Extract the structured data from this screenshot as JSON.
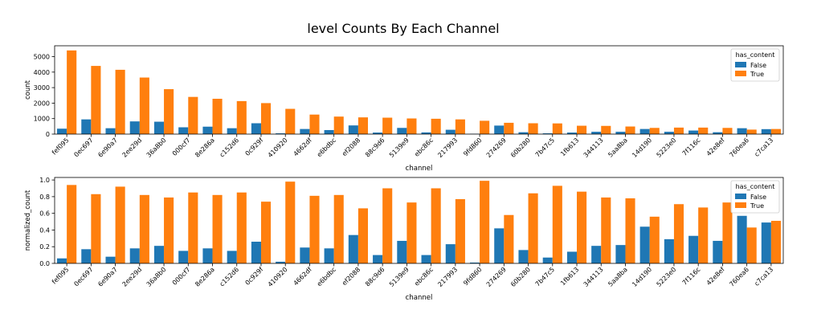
{
  "title": "level Counts By Each Channel",
  "colors": {
    "false_color": "#1f77b4",
    "true_color": "#ff7f0e"
  },
  "chart_data": [
    {
      "type": "bar",
      "xlabel": "channel",
      "ylabel": "count",
      "ylim": [
        0,
        5700
      ],
      "yticks": [
        0,
        1000,
        2000,
        3000,
        4000,
        5000
      ],
      "legend_title": "has_content",
      "legend_placement": "top-right",
      "grid": false,
      "categories": [
        "fef095",
        "0ec697",
        "6e90a7",
        "2ee29d",
        "36a8b0",
        "000cf7",
        "8e286a",
        "c152d6",
        "0c929f",
        "410920",
        "4662df",
        "e6bdbc",
        "ef2088",
        "88c9d6",
        "5139e9",
        "ebc86c",
        "217993",
        "9fd860",
        "274269",
        "60b280",
        "7b47c5",
        "1fb613",
        "344113",
        "5aa8ba",
        "14d190",
        "5223e0",
        "7f116c",
        "42e8ef",
        "760ea6",
        "c7ca13"
      ],
      "series": [
        {
          "name": "False",
          "values": [
            350,
            950,
            380,
            820,
            800,
            440,
            480,
            380,
            700,
            50,
            330,
            260,
            560,
            100,
            400,
            110,
            280,
            20,
            550,
            120,
            50,
            100,
            150,
            150,
            330,
            150,
            230,
            120,
            380,
            320
          ]
        },
        {
          "name": "True",
          "values": [
            5400,
            4400,
            4150,
            3650,
            2900,
            2400,
            2280,
            2130,
            2000,
            1630,
            1260,
            1130,
            1080,
            1060,
            1010,
            990,
            950,
            860,
            730,
            700,
            690,
            540,
            530,
            490,
            400,
            420,
            420,
            400,
            290,
            330
          ]
        }
      ]
    },
    {
      "type": "bar",
      "xlabel": "channel",
      "ylabel": "normalized_count",
      "ylim": [
        0,
        1.03
      ],
      "yticks": [
        "0.0",
        "0.2",
        "0.4",
        "0.6",
        "0.8",
        "1.0"
      ],
      "legend_title": "has_content",
      "legend_placement": "top-right",
      "grid": false,
      "categories": [
        "fef095",
        "0ec697",
        "6e90a7",
        "2ee29d",
        "36a8b0",
        "000cf7",
        "8e286a",
        "c152d6",
        "0c929f",
        "410920",
        "4662df",
        "e6bdbc",
        "ef2088",
        "88c9d6",
        "5139e9",
        "ebc86c",
        "217993",
        "9fd860",
        "274269",
        "60b280",
        "7b47c5",
        "1fb613",
        "344113",
        "5aa8ba",
        "14d190",
        "5223e0",
        "7f116c",
        "42e8ef",
        "760ea6",
        "c7ca13"
      ],
      "series": [
        {
          "name": "False",
          "values": [
            0.06,
            0.17,
            0.08,
            0.18,
            0.21,
            0.15,
            0.18,
            0.15,
            0.26,
            0.02,
            0.19,
            0.18,
            0.34,
            0.1,
            0.27,
            0.1,
            0.23,
            0.01,
            0.42,
            0.16,
            0.07,
            0.14,
            0.21,
            0.22,
            0.44,
            0.29,
            0.33,
            0.27,
            0.57,
            0.49
          ]
        },
        {
          "name": "True",
          "values": [
            0.94,
            0.83,
            0.92,
            0.82,
            0.79,
            0.85,
            0.82,
            0.85,
            0.74,
            0.98,
            0.81,
            0.82,
            0.66,
            0.9,
            0.73,
            0.9,
            0.77,
            0.99,
            0.58,
            0.84,
            0.93,
            0.86,
            0.79,
            0.78,
            0.56,
            0.71,
            0.67,
            0.73,
            0.43,
            0.51
          ]
        }
      ]
    }
  ]
}
